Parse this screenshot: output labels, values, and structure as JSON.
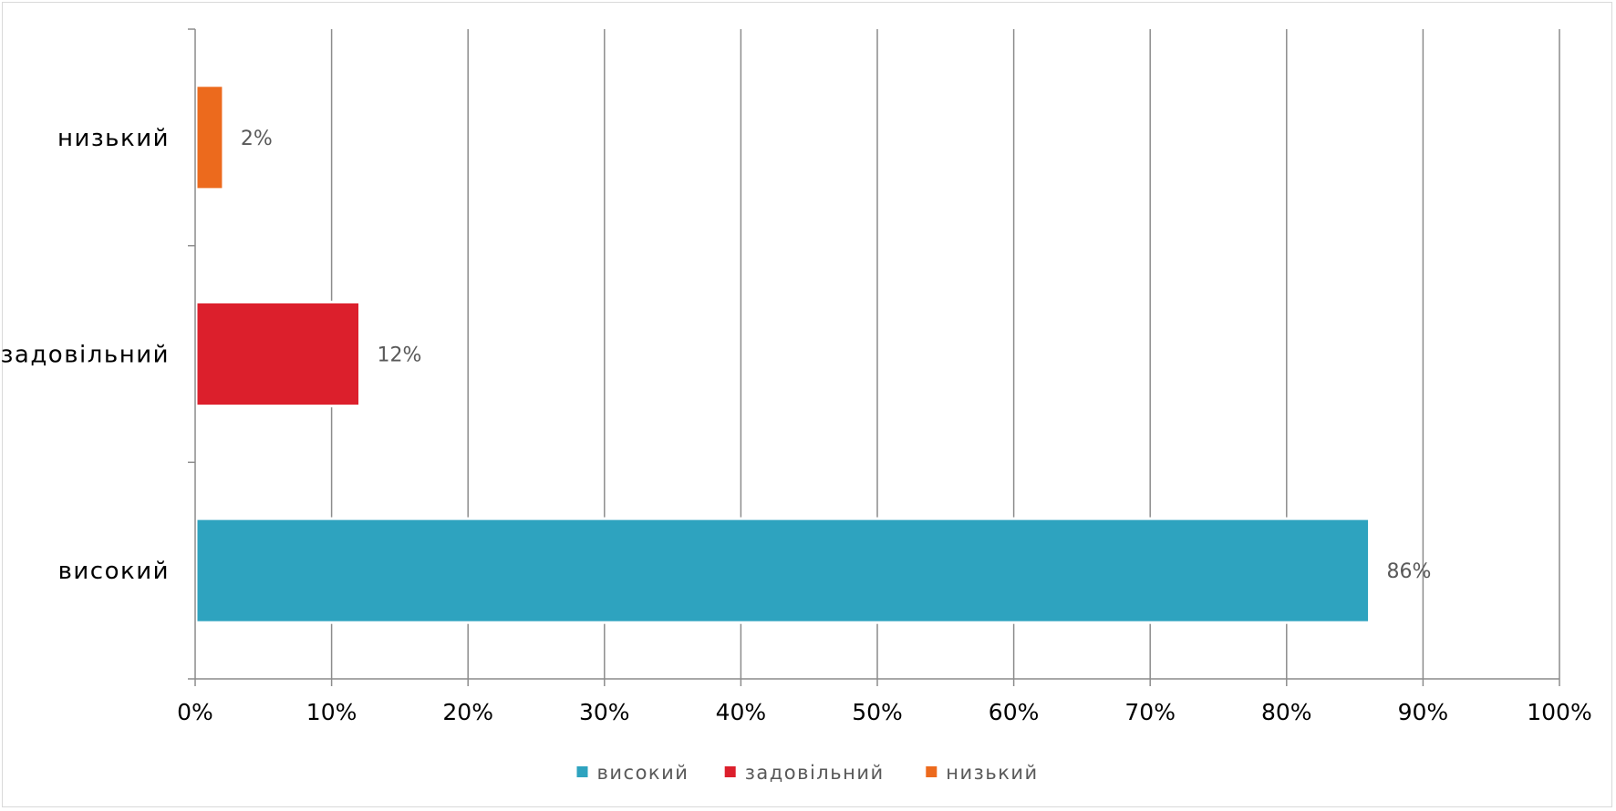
{
  "chart_data": {
    "type": "bar",
    "orientation": "horizontal",
    "categories": [
      "високий",
      "задовільний",
      "низький"
    ],
    "values": [
      86,
      12,
      2
    ],
    "value_unit": "%",
    "data_labels": [
      "86%",
      "12%",
      "2%"
    ],
    "colors": [
      "#2ea3bf",
      "#dc1f2c",
      "#ec6a1d"
    ],
    "title": "",
    "xlabel": "",
    "ylabel": "",
    "xlim": [
      0,
      100
    ],
    "x_ticks": [
      0,
      10,
      20,
      30,
      40,
      50,
      60,
      70,
      80,
      90,
      100
    ],
    "x_tick_labels": [
      "0%",
      "10%",
      "20%",
      "30%",
      "40%",
      "50%",
      "60%",
      "70%",
      "80%",
      "90%",
      "100%"
    ],
    "grid": "vertical",
    "legend": {
      "position": "bottom",
      "entries": [
        "високий",
        "задовільний",
        "низький"
      ]
    }
  }
}
